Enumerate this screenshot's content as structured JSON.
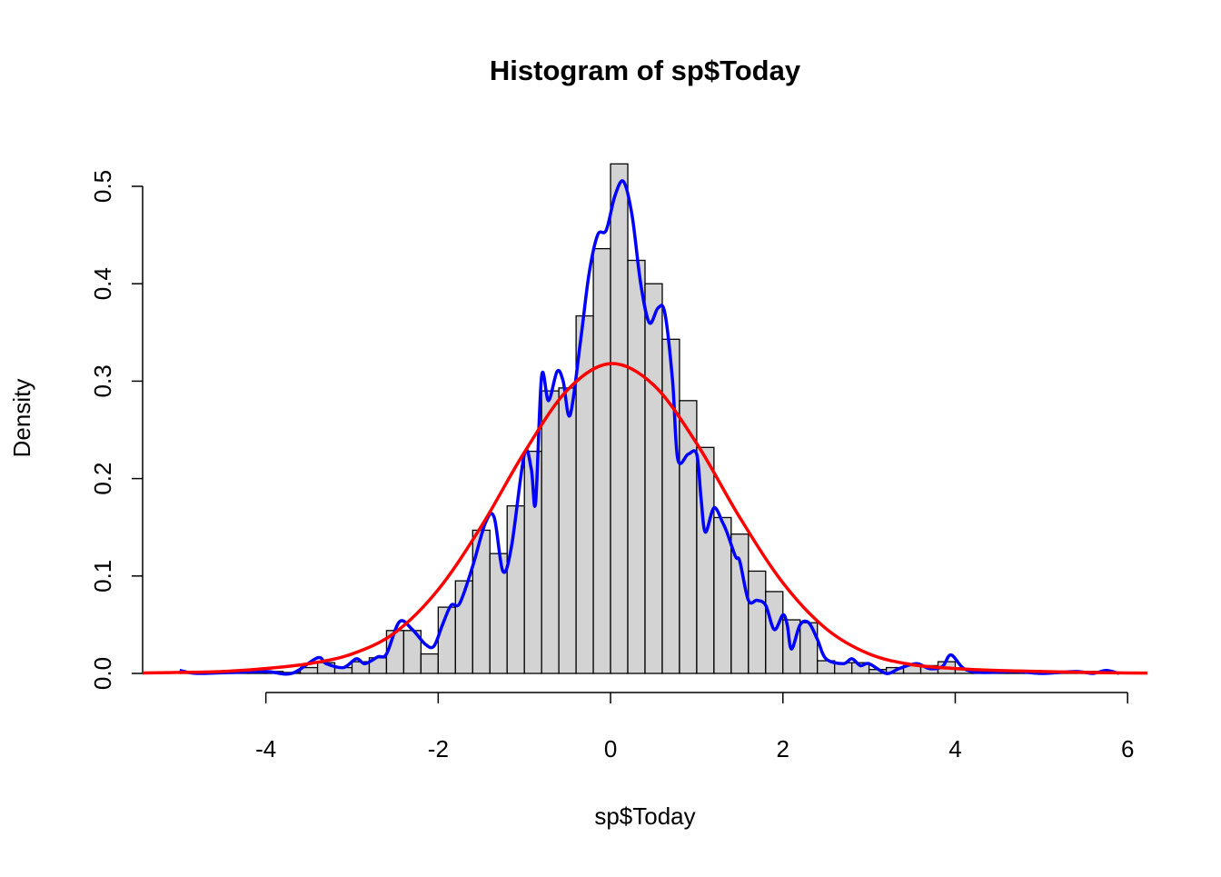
{
  "chart_data": {
    "type": "histogram",
    "title": "Histogram of sp$Today",
    "x_label": "sp$Today",
    "y_label": "Density",
    "bins": [
      -5.0,
      -4.8,
      -4.6,
      -4.4,
      -4.2,
      -4.0,
      -3.8,
      -3.6,
      -3.4,
      -3.2,
      -3.0,
      -2.8,
      -2.6,
      -2.4,
      -2.2,
      -2.0,
      -1.8,
      -1.6,
      -1.4,
      -1.2,
      -1.0,
      -0.8,
      -0.6,
      -0.4,
      -0.2,
      0.0,
      0.2,
      0.4,
      0.6,
      0.8,
      1.0,
      1.2,
      1.4,
      1.6,
      1.8,
      2.0,
      2.2,
      2.4,
      2.6,
      2.8,
      3.0,
      3.2,
      3.4,
      3.6,
      3.8,
      4.0,
      4.2,
      4.4,
      4.6,
      4.8,
      5.0,
      5.2,
      5.4,
      5.6,
      5.8
    ],
    "values": [
      0.002,
      0,
      0.001,
      0.002,
      0.001,
      0.002,
      0.001,
      0.006,
      0.011,
      0.006,
      0.012,
      0.016,
      0.044,
      0.044,
      0.02,
      0.068,
      0.095,
      0.147,
      0.123,
      0.172,
      0.228,
      0.29,
      0.293,
      0.367,
      0.436,
      0.523,
      0.424,
      0.4,
      0.343,
      0.28,
      0.232,
      0.16,
      0.143,
      0.105,
      0.084,
      0.055,
      0.052,
      0.013,
      0.011,
      0.011,
      0.004,
      0.006,
      0.008,
      0.008,
      0.012,
      0.004,
      0.003,
      0.002,
      0.003,
      0.001,
      0.001,
      0.001,
      0.002,
      0.002
    ],
    "bar_color": "#d3d3d3",
    "curves": [
      {
        "color": "#0000ff",
        "x": [
          -5.0,
          -4.8,
          -4.4,
          -4.0,
          -3.7,
          -3.4,
          -3.3,
          -3.1,
          -2.95,
          -2.85,
          -2.7,
          -2.6,
          -2.45,
          -2.3,
          -2.15,
          -2.05,
          -1.95,
          -1.85,
          -1.75,
          -1.6,
          -1.45,
          -1.35,
          -1.25,
          -1.15,
          -1.0,
          -0.92,
          -0.87,
          -0.8,
          -0.72,
          -0.62,
          -0.55,
          -0.47,
          -0.35,
          -0.25,
          -0.15,
          -0.05,
          0.05,
          0.15,
          0.25,
          0.35,
          0.45,
          0.55,
          0.63,
          0.72,
          0.78,
          0.9,
          1.0,
          1.05,
          1.1,
          1.2,
          1.3,
          1.35,
          1.45,
          1.5,
          1.6,
          1.7,
          1.8,
          1.9,
          2.0,
          2.05,
          2.1,
          2.2,
          2.3,
          2.4,
          2.5,
          2.7,
          2.8,
          2.9,
          3.0,
          3.2,
          3.35,
          3.55,
          3.7,
          3.85,
          3.95,
          4.1,
          4.3,
          4.7,
          5.0,
          5.4,
          5.6,
          5.75,
          5.9
        ],
        "values": [
          0.003,
          0.0,
          0.001,
          0.002,
          0.0,
          0.016,
          0.01,
          0.006,
          0.015,
          0.01,
          0.017,
          0.02,
          0.053,
          0.045,
          0.03,
          0.028,
          0.05,
          0.07,
          0.072,
          0.11,
          0.155,
          0.16,
          0.105,
          0.13,
          0.225,
          0.21,
          0.175,
          0.305,
          0.28,
          0.31,
          0.3,
          0.265,
          0.34,
          0.41,
          0.45,
          0.455,
          0.49,
          0.505,
          0.47,
          0.4,
          0.36,
          0.375,
          0.37,
          0.3,
          0.22,
          0.225,
          0.225,
          0.18,
          0.145,
          0.17,
          0.155,
          0.145,
          0.12,
          0.115,
          0.075,
          0.075,
          0.07,
          0.045,
          0.06,
          0.05,
          0.025,
          0.05,
          0.052,
          0.035,
          0.015,
          0.01,
          0.015,
          0.008,
          0.01,
          0.0,
          0.005,
          0.01,
          0.005,
          0.007,
          0.019,
          0.005,
          0.001,
          0.002,
          0.0,
          0.002,
          0.0,
          0.003,
          0.0
        ]
      },
      {
        "color": "#ff0000",
        "x": [
          -5.43,
          -5.0,
          -4.5,
          -4.0,
          -3.5,
          -3.0,
          -2.5,
          -2.0,
          -1.5,
          -1.0,
          -0.5,
          0.0,
          0.5,
          1.0,
          1.5,
          2.0,
          2.5,
          3.0,
          3.5,
          4.0,
          4.5,
          5.0,
          5.5,
          6.0,
          6.23
        ],
        "values": [
          0.0005,
          0.001,
          0.002,
          0.005,
          0.01,
          0.02,
          0.042,
          0.086,
          0.151,
          0.227,
          0.291,
          0.318,
          0.296,
          0.236,
          0.16,
          0.093,
          0.046,
          0.02,
          0.009,
          0.005,
          0.003,
          0.002,
          0.001,
          0.0005,
          0.0003
        ]
      }
    ],
    "xlim": [
      -5.43,
      6.23
    ],
    "ylim": [
      -0.021,
      0.546
    ],
    "xticks": [
      -4,
      -2,
      0,
      2,
      4,
      6
    ],
    "yticks": [
      {
        "value": 0,
        "label": "0.0"
      },
      0.1,
      0.2,
      0.3,
      0.4,
      0.5
    ]
  }
}
